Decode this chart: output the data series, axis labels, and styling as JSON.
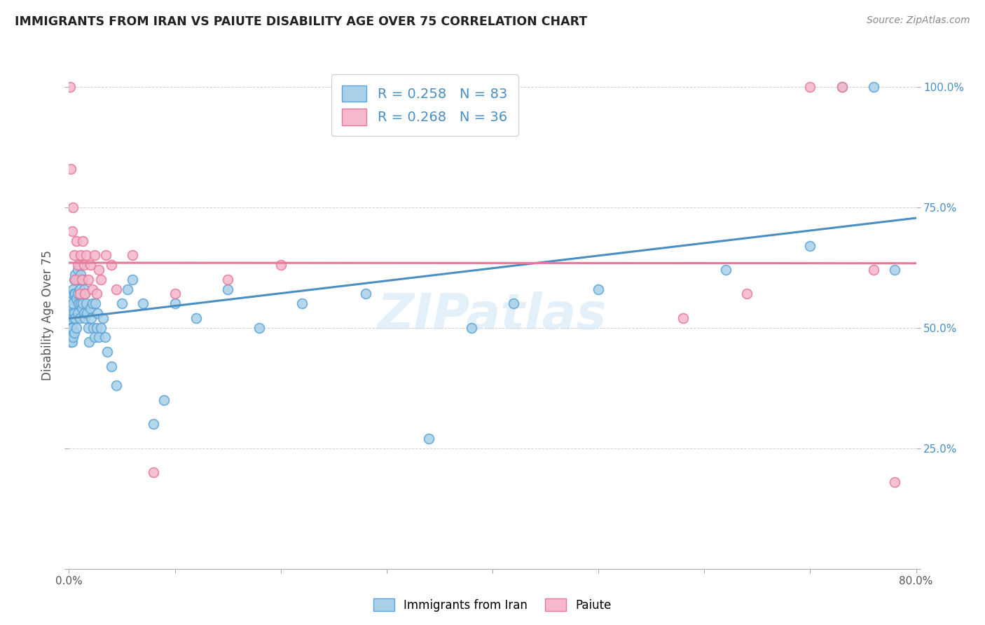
{
  "title": "IMMIGRANTS FROM IRAN VS PAIUTE DISABILITY AGE OVER 75 CORRELATION CHART",
  "source": "Source: ZipAtlas.com",
  "ylabel": "Disability Age Over 75",
  "xmin": 0.0,
  "xmax": 0.8,
  "ymin": 0.0,
  "ymax": 1.05,
  "yticks": [
    0.0,
    0.25,
    0.5,
    0.75,
    1.0
  ],
  "ytick_labels": [
    "",
    "25.0%",
    "50.0%",
    "75.0%",
    "100.0%"
  ],
  "xticks": [
    0.0,
    0.1,
    0.2,
    0.3,
    0.4,
    0.5,
    0.6,
    0.7,
    0.8
  ],
  "xtick_labels": [
    "0.0%",
    "",
    "",
    "",
    "",
    "",
    "",
    "",
    "80.0%"
  ],
  "blue_color": "#A8D0E8",
  "pink_color": "#F5B8CC",
  "blue_edge_color": "#5BA3D9",
  "pink_edge_color": "#E8789A",
  "blue_line_color": "#4A8EC2",
  "pink_line_color": "#E8789A",
  "R_blue": 0.258,
  "N_blue": 83,
  "R_pink": 0.268,
  "N_pink": 36,
  "watermark": "ZIPatlas",
  "blue_scatter_x": [
    0.001,
    0.001,
    0.001,
    0.002,
    0.002,
    0.002,
    0.002,
    0.003,
    0.003,
    0.003,
    0.003,
    0.004,
    0.004,
    0.004,
    0.004,
    0.005,
    0.005,
    0.005,
    0.005,
    0.006,
    0.006,
    0.006,
    0.007,
    0.007,
    0.007,
    0.008,
    0.008,
    0.008,
    0.009,
    0.009,
    0.01,
    0.01,
    0.01,
    0.011,
    0.011,
    0.012,
    0.012,
    0.013,
    0.013,
    0.014,
    0.014,
    0.015,
    0.015,
    0.016,
    0.017,
    0.018,
    0.019,
    0.02,
    0.021,
    0.022,
    0.023,
    0.024,
    0.025,
    0.026,
    0.027,
    0.028,
    0.03,
    0.032,
    0.034,
    0.036,
    0.04,
    0.045,
    0.05,
    0.055,
    0.06,
    0.07,
    0.08,
    0.09,
    0.1,
    0.12,
    0.15,
    0.18,
    0.22,
    0.28,
    0.34,
    0.38,
    0.42,
    0.5,
    0.62,
    0.7,
    0.73,
    0.76,
    0.78
  ],
  "blue_scatter_y": [
    0.53,
    0.5,
    0.48,
    0.56,
    0.54,
    0.5,
    0.47,
    0.57,
    0.53,
    0.5,
    0.47,
    0.58,
    0.55,
    0.52,
    0.48,
    0.6,
    0.57,
    0.53,
    0.49,
    0.61,
    0.57,
    0.52,
    0.6,
    0.56,
    0.5,
    0.62,
    0.57,
    0.53,
    0.6,
    0.55,
    0.63,
    0.58,
    0.52,
    0.61,
    0.55,
    0.6,
    0.54,
    0.6,
    0.55,
    0.58,
    0.53,
    0.57,
    0.52,
    0.55,
    0.53,
    0.5,
    0.47,
    0.54,
    0.52,
    0.55,
    0.5,
    0.48,
    0.55,
    0.5,
    0.53,
    0.48,
    0.5,
    0.52,
    0.48,
    0.45,
    0.42,
    0.38,
    0.55,
    0.58,
    0.6,
    0.55,
    0.3,
    0.35,
    0.55,
    0.52,
    0.58,
    0.5,
    0.55,
    0.57,
    0.27,
    0.5,
    0.55,
    0.58,
    0.62,
    0.67,
    1.0,
    1.0,
    0.62
  ],
  "pink_scatter_x": [
    0.001,
    0.002,
    0.003,
    0.004,
    0.005,
    0.006,
    0.007,
    0.008,
    0.01,
    0.011,
    0.012,
    0.013,
    0.014,
    0.015,
    0.016,
    0.018,
    0.02,
    0.022,
    0.024,
    0.026,
    0.028,
    0.03,
    0.035,
    0.04,
    0.045,
    0.06,
    0.08,
    0.1,
    0.15,
    0.2,
    0.58,
    0.64,
    0.7,
    0.73,
    0.76,
    0.78
  ],
  "pink_scatter_y": [
    1.0,
    0.83,
    0.7,
    0.75,
    0.65,
    0.6,
    0.68,
    0.63,
    0.57,
    0.65,
    0.6,
    0.68,
    0.63,
    0.57,
    0.65,
    0.6,
    0.63,
    0.58,
    0.65,
    0.57,
    0.62,
    0.6,
    0.65,
    0.63,
    0.58,
    0.65,
    0.2,
    0.57,
    0.6,
    0.63,
    0.52,
    0.57,
    1.0,
    1.0,
    0.62,
    0.18
  ]
}
